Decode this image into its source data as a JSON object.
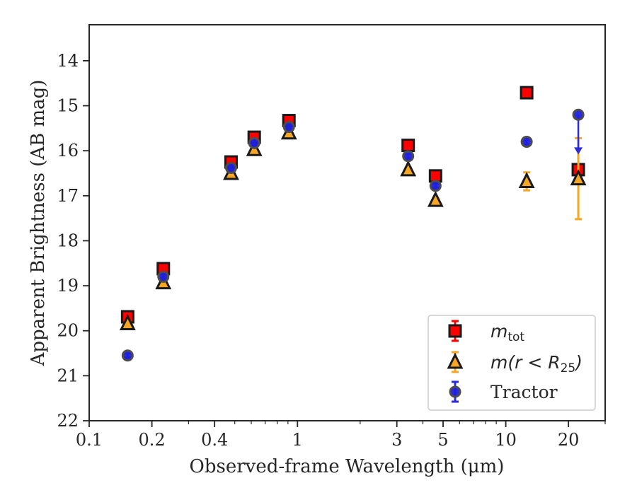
{
  "chart_data": {
    "type": "scatter",
    "xlabel": "Observed-frame Wavelength (μm)",
    "ylabel": "Apparent Brightness (AB mag)",
    "xscale": "log",
    "xlim": [
      0.1,
      30
    ],
    "ylim": [
      22,
      13.2
    ],
    "y_inverted": true,
    "x_ticks": [
      {
        "value": 0.1,
        "label": "0.1"
      },
      {
        "value": 0.2,
        "label": "0.2"
      },
      {
        "value": 0.4,
        "label": "0.4"
      },
      {
        "value": 1,
        "label": "1"
      },
      {
        "value": 3,
        "label": "3"
      },
      {
        "value": 5,
        "label": "5"
      },
      {
        "value": 10,
        "label": "10"
      },
      {
        "value": 20,
        "label": "20"
      }
    ],
    "y_ticks": [
      {
        "value": 14,
        "label": "14"
      },
      {
        "value": 15,
        "label": "15"
      },
      {
        "value": 16,
        "label": "16"
      },
      {
        "value": 17,
        "label": "17"
      },
      {
        "value": 18,
        "label": "18"
      },
      {
        "value": 19,
        "label": "19"
      },
      {
        "value": 20,
        "label": "20"
      },
      {
        "value": 21,
        "label": "21"
      },
      {
        "value": 22,
        "label": "22"
      }
    ],
    "grid": false,
    "legend": {
      "placement": "bottom-right"
    },
    "series": [
      {
        "name": "m_tot",
        "legend_main": "m",
        "legend_sub": "tot",
        "marker": "square",
        "color": "#ff0000",
        "edge_color": "#1a1a1a",
        "errbar_color": "#ff0000",
        "points": [
          {
            "x": 0.153,
            "y": 19.69,
            "err": 0.05
          },
          {
            "x": 0.227,
            "y": 18.62,
            "err": 0.04
          },
          {
            "x": 0.48,
            "y": 16.25,
            "err": 0.05
          },
          {
            "x": 0.62,
            "y": 15.7,
            "err": 0.05
          },
          {
            "x": 0.91,
            "y": 15.33,
            "err": 0.05
          },
          {
            "x": 3.4,
            "y": 15.88,
            "err": 0.05
          },
          {
            "x": 4.6,
            "y": 16.56,
            "err": 0.05
          },
          {
            "x": 12.6,
            "y": 14.71,
            "err": 0.05
          },
          {
            "x": 22.3,
            "y": 16.42,
            "err": 0.05
          }
        ]
      },
      {
        "name": "m(r < R25)",
        "legend_main": "m(r < R",
        "legend_sub": "25",
        "legend_tail": ")",
        "marker": "triangle",
        "color": "#f5a623",
        "edge_color": "#1a1a1a",
        "errbar_color": "#f5a623",
        "points": [
          {
            "x": 0.153,
            "y": 19.84,
            "err": 0.05
          },
          {
            "x": 0.227,
            "y": 18.93,
            "err": 0.05
          },
          {
            "x": 0.48,
            "y": 16.5,
            "err": 0.05
          },
          {
            "x": 0.62,
            "y": 15.97,
            "err": 0.05
          },
          {
            "x": 0.91,
            "y": 15.6,
            "err": 0.05
          },
          {
            "x": 3.4,
            "y": 16.42,
            "err": 0.05
          },
          {
            "x": 4.6,
            "y": 17.1,
            "err": 0.05
          },
          {
            "x": 12.6,
            "y": 16.68,
            "err": 0.2
          },
          {
            "x": 22.3,
            "y": 16.62,
            "err": 0.9
          }
        ]
      },
      {
        "name": "Tractor",
        "legend_main": "Tractor",
        "marker": "circle",
        "color": "#1f1fe0",
        "edge_color": "#4d4d4d",
        "errbar_color": "#2b2bd8",
        "points": [
          {
            "x": 0.153,
            "y": 20.55,
            "err": 0.05
          },
          {
            "x": 0.227,
            "y": 18.8,
            "err": 0.08
          },
          {
            "x": 0.48,
            "y": 16.38,
            "err": 0.08
          },
          {
            "x": 0.62,
            "y": 15.83,
            "err": 0.08
          },
          {
            "x": 0.91,
            "y": 15.47,
            "err": 0.08
          },
          {
            "x": 3.4,
            "y": 16.12,
            "err": 0.05
          },
          {
            "x": 4.6,
            "y": 16.78,
            "err": 0.05
          },
          {
            "x": 12.6,
            "y": 15.8,
            "err": 0.07
          },
          {
            "x": 22.3,
            "y": 15.2,
            "upper_limit_to": 16.05
          }
        ]
      }
    ]
  }
}
